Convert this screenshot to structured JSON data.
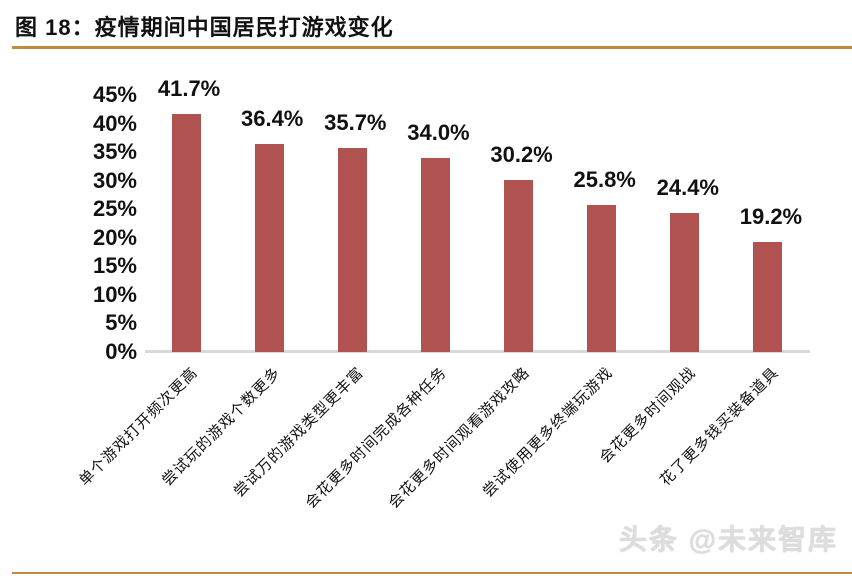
{
  "header": {
    "title": "图 18：疫情期间中国居民打游戏变化"
  },
  "watermark": "头条 @未来智库",
  "colors": {
    "bar": "#AF5250",
    "rule": "#BE8C3E",
    "axis_line": "#D9D9D9"
  },
  "chart_data": {
    "type": "bar",
    "title": "疫情期间中国居民打游戏变化",
    "categories": [
      "单个游戏打开频次更高",
      "尝试玩的游戏个数更多",
      "尝试万的游戏类型更丰富",
      "会花更多时间完成各种任务",
      "会花更多时间观看游戏攻略",
      "尝试使用更多终端玩游戏",
      "会花更多时间观战",
      "花了更多钱买装备道具"
    ],
    "values": [
      41.7,
      36.4,
      35.7,
      34.0,
      30.2,
      25.8,
      24.4,
      19.2
    ],
    "value_labels": [
      "41.7%",
      "36.4%",
      "35.7%",
      "34.0%",
      "30.2%",
      "25.8%",
      "24.4%",
      "19.2%"
    ],
    "xlabel": "",
    "ylabel": "",
    "ylim": [
      0,
      45
    ],
    "yticks": [
      "0%",
      "5%",
      "10%",
      "15%",
      "20%",
      "25%",
      "30%",
      "35%",
      "40%",
      "45%"
    ],
    "grid": false,
    "legend_position": "none"
  }
}
